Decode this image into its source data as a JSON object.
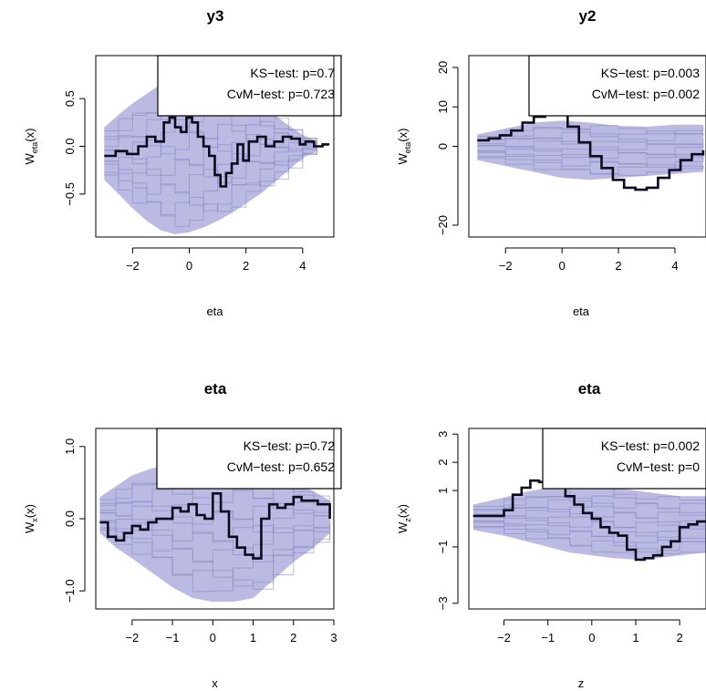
{
  "colors": {
    "band": "#b3b3e0",
    "sim": "#8585c2",
    "obs": "#0a0a1f",
    "box": "#000000"
  },
  "chart_data": [
    {
      "type": "line",
      "title": "y3",
      "xlabel": "eta",
      "ylabel_main": "W",
      "ylabel_sub": "eta",
      "ylabel_tail": "(x)",
      "xlim": [
        -3.3,
        5.1
      ],
      "ylim": [
        -0.95,
        0.95
      ],
      "xticks": [
        -2,
        0,
        2,
        4
      ],
      "xtick_labels": [
        "−2",
        "0",
        "2",
        "4"
      ],
      "yticks": [
        -0.5,
        0.0,
        0.5
      ],
      "ytick_labels": [
        "−0.5",
        "0.0",
        "0.5"
      ],
      "band_x": [
        -3.0,
        -2.5,
        -2.0,
        -1.5,
        -1.0,
        -0.5,
        0.0,
        0.5,
        1.0,
        1.5,
        2.0,
        2.5,
        3.0,
        3.5,
        4.0,
        4.5
      ],
      "band_upper": [
        0.2,
        0.33,
        0.45,
        0.55,
        0.65,
        0.7,
        0.72,
        0.7,
        0.65,
        0.57,
        0.5,
        0.42,
        0.33,
        0.22,
        0.12,
        0.05
      ],
      "band_lower": [
        -0.35,
        -0.5,
        -0.65,
        -0.78,
        -0.88,
        -0.92,
        -0.9,
        -0.85,
        -0.78,
        -0.7,
        -0.6,
        -0.5,
        -0.38,
        -0.25,
        -0.12,
        -0.05
      ],
      "observed": {
        "x": [
          -3.0,
          -2.6,
          -2.2,
          -1.8,
          -1.5,
          -1.2,
          -0.9,
          -0.7,
          -0.5,
          -0.3,
          -0.1,
          0.1,
          0.3,
          0.5,
          0.7,
          0.9,
          1.1,
          1.3,
          1.5,
          1.7,
          1.9,
          2.1,
          2.4,
          2.7,
          3.0,
          3.3,
          3.6,
          3.9,
          4.1,
          4.4,
          4.7,
          4.9
        ],
        "y": [
          -0.1,
          -0.05,
          -0.08,
          0.0,
          0.1,
          0.05,
          0.25,
          0.3,
          0.2,
          0.15,
          0.3,
          0.25,
          0.1,
          0.0,
          -0.1,
          -0.3,
          -0.42,
          -0.28,
          -0.18,
          0.02,
          -0.15,
          0.05,
          0.1,
          0.0,
          0.05,
          0.1,
          0.08,
          0.02,
          0.05,
          0.0,
          0.02,
          0.01
        ]
      },
      "legend": {
        "position": "top-right",
        "lines": [
          "KS−test: p=0.7",
          "CvM−test: p=0.723"
        ]
      }
    },
    {
      "type": "line",
      "title": "y2",
      "xlabel": "eta",
      "ylabel_main": "W",
      "ylabel_sub": "eta",
      "ylabel_tail": "(x)",
      "xlim": [
        -3.3,
        5.1
      ],
      "ylim": [
        -23,
        23
      ],
      "xticks": [
        -2,
        0,
        2,
        4
      ],
      "xtick_labels": [
        "−2",
        "0",
        "2",
        "4"
      ],
      "yticks": [
        -20,
        0,
        10,
        20
      ],
      "ytick_labels": [
        "−20",
        "0",
        "10",
        "20"
      ],
      "band_x": [
        -3.0,
        -2.0,
        -1.0,
        0.0,
        1.0,
        2.0,
        3.0,
        4.0,
        5.0
      ],
      "band_upper": [
        3.0,
        4.5,
        6.0,
        6.5,
        6.0,
        5.2,
        5.0,
        5.5,
        5.5
      ],
      "band_lower": [
        -3.5,
        -5.0,
        -6.5,
        -8.0,
        -8.5,
        -8.0,
        -7.5,
        -7.0,
        -6.5
      ],
      "observed": {
        "x": [
          -3.0,
          -2.6,
          -2.2,
          -1.8,
          -1.4,
          -1.0,
          -0.6,
          -0.2,
          0.2,
          0.6,
          1.0,
          1.4,
          1.8,
          2.2,
          2.6,
          3.0,
          3.4,
          3.8,
          4.2,
          4.6,
          5.0
        ],
        "y": [
          1.5,
          2.0,
          2.8,
          4.0,
          6.0,
          7.5,
          8.5,
          9.0,
          5.0,
          1.0,
          -2.5,
          -5.5,
          -8.5,
          -10.5,
          -11.0,
          -10.5,
          -8.0,
          -6.0,
          -3.5,
          -2.0,
          -1.0
        ]
      },
      "legend": {
        "position": "top-right",
        "lines": [
          "KS−test: p=0.003",
          "CvM−test: p=0.002"
        ]
      }
    },
    {
      "type": "line",
      "title": "eta",
      "xlabel": "x",
      "ylabel_main": "W",
      "ylabel_sub": "x",
      "ylabel_tail": "(x)",
      "xlim": [
        -2.9,
        3.0
      ],
      "ylim": [
        -1.25,
        1.25
      ],
      "xticks": [
        -2,
        -1,
        0,
        1,
        2,
        3
      ],
      "xtick_labels": [
        "−2",
        "−1",
        "0",
        "1",
        "2",
        "3"
      ],
      "yticks": [
        -1.0,
        0.0,
        1.0
      ],
      "ytick_labels": [
        "−1.0",
        "0.0",
        "1.0"
      ],
      "band_x": [
        -2.8,
        -2.4,
        -2.0,
        -1.5,
        -1.0,
        -0.5,
        0.0,
        0.5,
        1.0,
        1.5,
        2.0,
        2.5,
        2.9
      ],
      "band_upper": [
        0.3,
        0.45,
        0.6,
        0.7,
        0.75,
        0.78,
        0.78,
        0.75,
        0.7,
        0.62,
        0.5,
        0.38,
        0.25
      ],
      "band_lower": [
        -0.2,
        -0.4,
        -0.55,
        -0.75,
        -0.95,
        -1.1,
        -1.15,
        -1.15,
        -1.1,
        -0.85,
        -0.6,
        -0.4,
        -0.2
      ],
      "observed": {
        "x": [
          -2.8,
          -2.6,
          -2.4,
          -2.2,
          -2.0,
          -1.8,
          -1.6,
          -1.4,
          -1.2,
          -1.0,
          -0.8,
          -0.6,
          -0.4,
          -0.2,
          0.0,
          0.2,
          0.4,
          0.6,
          0.8,
          1.0,
          1.2,
          1.4,
          1.6,
          1.8,
          2.0,
          2.2,
          2.4,
          2.6,
          2.9
        ],
        "y": [
          -0.05,
          -0.25,
          -0.3,
          -0.2,
          -0.1,
          -0.15,
          -0.05,
          0.0,
          0.0,
          0.15,
          0.1,
          0.2,
          0.05,
          0.0,
          0.35,
          0.1,
          -0.25,
          -0.4,
          -0.5,
          -0.55,
          0.0,
          0.2,
          0.15,
          0.2,
          0.3,
          0.25,
          0.25,
          0.2,
          0.0
        ]
      },
      "legend": {
        "position": "top-right",
        "lines": [
          "KS−test: p=0.72",
          "CvM−test: p=0.652"
        ]
      }
    },
    {
      "type": "line",
      "title": "eta",
      "xlabel": "z",
      "ylabel_main": "W",
      "ylabel_sub": "z",
      "ylabel_tail": "(x)",
      "xlim": [
        -2.8,
        2.6
      ],
      "ylim": [
        -3.2,
        3.2
      ],
      "xticks": [
        -2,
        -1,
        0,
        1,
        2
      ],
      "xtick_labels": [
        "−2",
        "−1",
        "0",
        "1",
        "2"
      ],
      "yticks": [
        -3,
        -1,
        1,
        2,
        3
      ],
      "ytick_labels": [
        "−3",
        "−1",
        "1",
        "2",
        "3"
      ],
      "band_x": [
        -2.7,
        -2.0,
        -1.5,
        -1.0,
        -0.5,
        0.0,
        0.5,
        1.0,
        1.5,
        2.0,
        2.6
      ],
      "band_upper": [
        0.5,
        0.75,
        0.95,
        1.1,
        1.2,
        1.2,
        1.1,
        1.0,
        0.9,
        0.8,
        0.8
      ],
      "band_lower": [
        -0.4,
        -0.6,
        -0.8,
        -1.0,
        -1.2,
        -1.3,
        -1.4,
        -1.45,
        -1.4,
        -1.3,
        -1.2
      ],
      "observed": {
        "x": [
          -2.7,
          -2.3,
          -2.0,
          -1.8,
          -1.6,
          -1.4,
          -1.2,
          -1.0,
          -0.8,
          -0.6,
          -0.4,
          -0.2,
          0.0,
          0.2,
          0.4,
          0.6,
          0.8,
          1.0,
          1.2,
          1.4,
          1.6,
          1.8,
          2.0,
          2.2,
          2.4,
          2.6
        ],
        "y": [
          0.1,
          0.1,
          0.3,
          0.85,
          1.1,
          1.35,
          1.3,
          1.4,
          1.2,
          0.8,
          0.5,
          0.2,
          0.0,
          -0.3,
          -0.5,
          -0.6,
          -1.1,
          -1.45,
          -1.4,
          -1.3,
          -1.0,
          -0.8,
          -0.3,
          -0.2,
          -0.1,
          -0.1
        ]
      },
      "legend": {
        "position": "top-right",
        "lines": [
          "KS−test: p=0.002",
          "CvM−test: p=0"
        ]
      }
    }
  ]
}
